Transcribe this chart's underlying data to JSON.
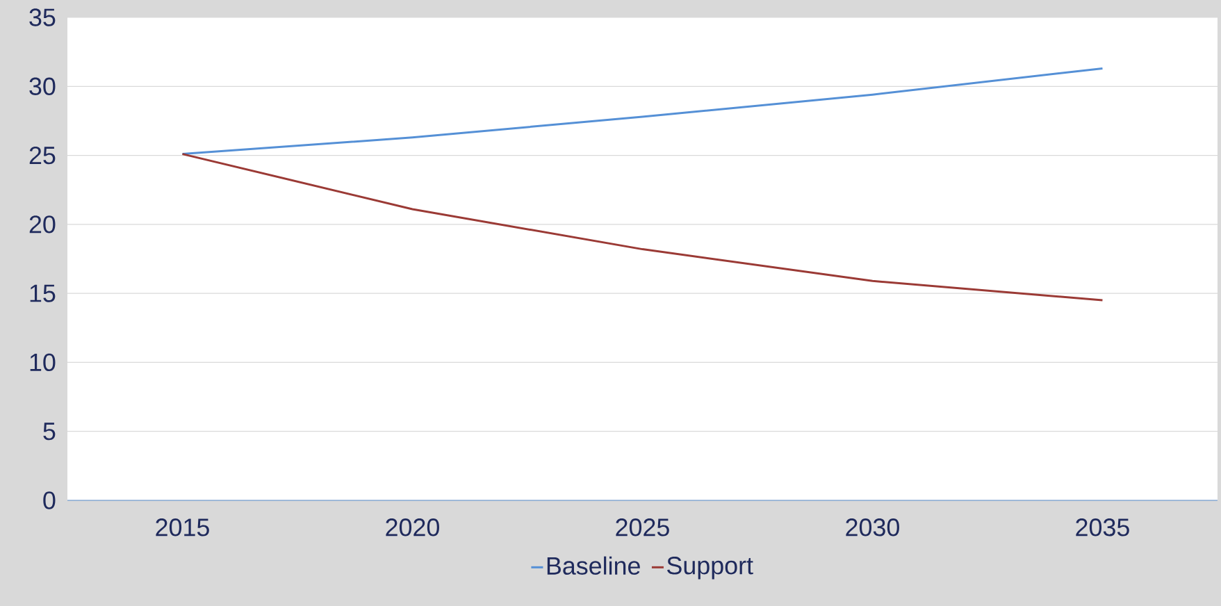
{
  "chart_data": {
    "type": "line",
    "categories": [
      "2015",
      "2020",
      "2025",
      "2030",
      "2035"
    ],
    "series": [
      {
        "name": "Baseline",
        "color": "#5590d6",
        "values": [
          25.1,
          26.3,
          27.8,
          29.4,
          31.3
        ]
      },
      {
        "name": "Support",
        "color": "#9b3a35",
        "values": [
          25.1,
          21.1,
          18.2,
          15.9,
          14.5
        ]
      }
    ],
    "ylim": [
      0,
      35
    ],
    "yticks": [
      0,
      5,
      10,
      15,
      20,
      25,
      30,
      35
    ],
    "grid": "y",
    "legend": "bottom",
    "marker": "none",
    "line_style": "solid"
  }
}
